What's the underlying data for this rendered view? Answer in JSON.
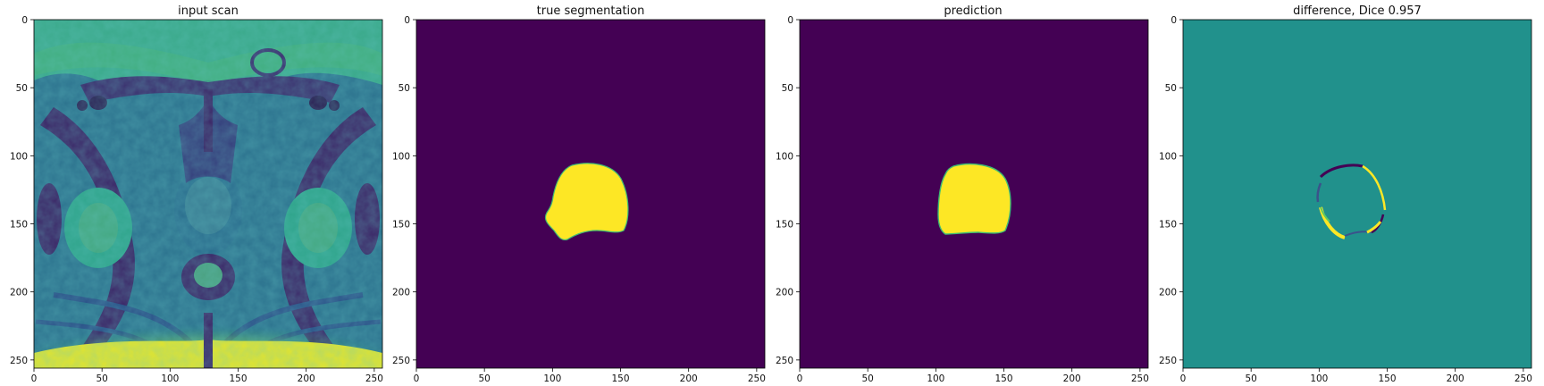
{
  "figure": {
    "panels": [
      {
        "id": "input",
        "title": "input scan"
      },
      {
        "id": "truth",
        "title": "true segmentation"
      },
      {
        "id": "pred",
        "title": "prediction"
      },
      {
        "id": "diff",
        "title": "difference, Dice 0.957"
      }
    ],
    "x_ticks": [
      "0",
      "50",
      "100",
      "150",
      "200",
      "250"
    ],
    "y_ticks": [
      "0",
      "50",
      "100",
      "150",
      "200",
      "250"
    ],
    "image_size": [
      256,
      256
    ],
    "colors": {
      "viridis_low": "#440154",
      "viridis_mid": "#21918c",
      "viridis_high": "#fde725",
      "viridis_q1": "#3b528b",
      "viridis_q3": "#5ec962"
    }
  }
}
